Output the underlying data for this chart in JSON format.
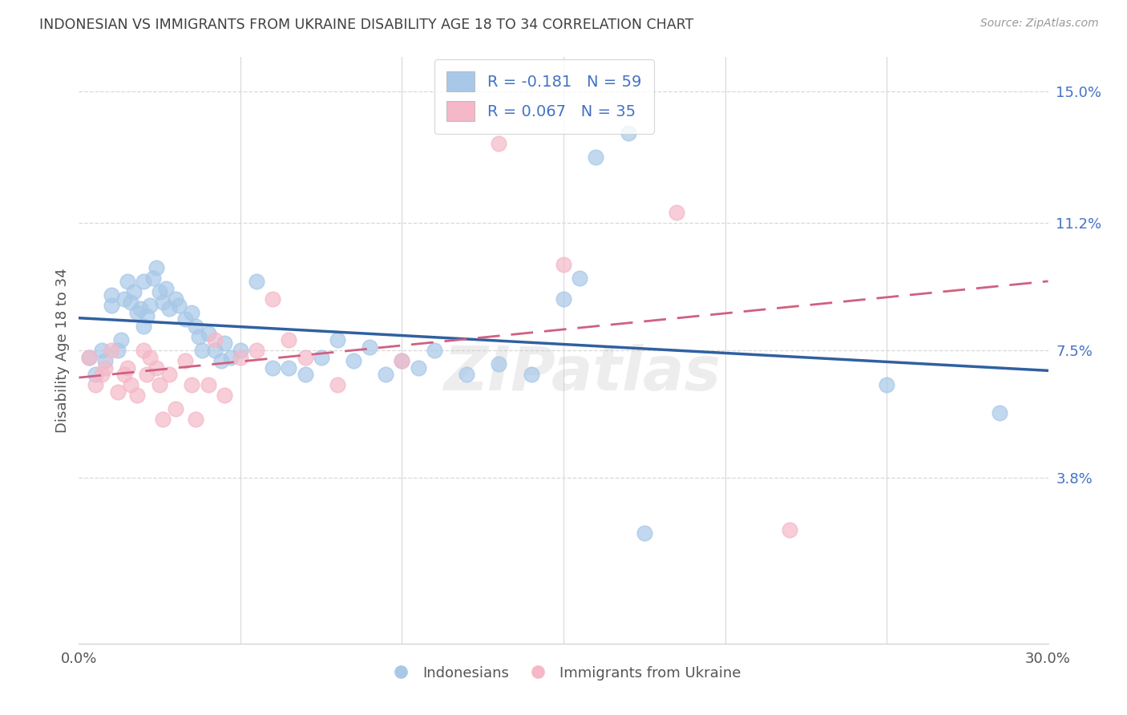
{
  "title": "INDONESIAN VS IMMIGRANTS FROM UKRAINE DISABILITY AGE 18 TO 34 CORRELATION CHART",
  "source": "Source: ZipAtlas.com",
  "ylabel": "Disability Age 18 to 34",
  "xlim": [
    0.0,
    0.3
  ],
  "ylim": [
    -0.01,
    0.16
  ],
  "xticks": [
    0.0,
    0.05,
    0.1,
    0.15,
    0.2,
    0.25,
    0.3
  ],
  "ytick_positions": [
    0.038,
    0.075,
    0.112,
    0.15
  ],
  "ytick_labels": [
    "3.8%",
    "7.5%",
    "11.2%",
    "15.0%"
  ],
  "legend_labels": [
    "R = -0.181   N = 59",
    "R = 0.067   N = 35"
  ],
  "bottom_legend": [
    "Indonesians",
    "Immigrants from Ukraine"
  ],
  "blue_color": "#a8c8e8",
  "pink_color": "#f4b8c8",
  "line_blue": "#3060a0",
  "line_pink": "#d06080",
  "indonesian_x": [
    0.003,
    0.005,
    0.007,
    0.008,
    0.01,
    0.01,
    0.012,
    0.013,
    0.014,
    0.015,
    0.016,
    0.017,
    0.018,
    0.019,
    0.02,
    0.02,
    0.021,
    0.022,
    0.023,
    0.024,
    0.025,
    0.026,
    0.027,
    0.028,
    0.03,
    0.031,
    0.033,
    0.035,
    0.036,
    0.037,
    0.038,
    0.04,
    0.042,
    0.044,
    0.045,
    0.047,
    0.05,
    0.055,
    0.06,
    0.065,
    0.07,
    0.075,
    0.08,
    0.085,
    0.09,
    0.095,
    0.1,
    0.105,
    0.11,
    0.12,
    0.13,
    0.14,
    0.15,
    0.155,
    0.16,
    0.17,
    0.175,
    0.25,
    0.285
  ],
  "indonesian_y": [
    0.073,
    0.068,
    0.075,
    0.072,
    0.091,
    0.088,
    0.075,
    0.078,
    0.09,
    0.095,
    0.089,
    0.092,
    0.086,
    0.087,
    0.095,
    0.082,
    0.085,
    0.088,
    0.096,
    0.099,
    0.092,
    0.089,
    0.093,
    0.087,
    0.09,
    0.088,
    0.084,
    0.086,
    0.082,
    0.079,
    0.075,
    0.08,
    0.075,
    0.072,
    0.077,
    0.073,
    0.075,
    0.095,
    0.07,
    0.07,
    0.068,
    0.073,
    0.078,
    0.072,
    0.076,
    0.068,
    0.072,
    0.07,
    0.075,
    0.068,
    0.071,
    0.068,
    0.09,
    0.096,
    0.131,
    0.138,
    0.022,
    0.065,
    0.057
  ],
  "ukraine_x": [
    0.003,
    0.005,
    0.007,
    0.008,
    0.01,
    0.012,
    0.014,
    0.015,
    0.016,
    0.018,
    0.02,
    0.021,
    0.022,
    0.024,
    0.025,
    0.026,
    0.028,
    0.03,
    0.033,
    0.035,
    0.036,
    0.04,
    0.042,
    0.045,
    0.05,
    0.055,
    0.06,
    0.065,
    0.07,
    0.08,
    0.1,
    0.13,
    0.15,
    0.185,
    0.22
  ],
  "ukraine_y": [
    0.073,
    0.065,
    0.068,
    0.07,
    0.075,
    0.063,
    0.068,
    0.07,
    0.065,
    0.062,
    0.075,
    0.068,
    0.073,
    0.07,
    0.065,
    0.055,
    0.068,
    0.058,
    0.072,
    0.065,
    0.055,
    0.065,
    0.078,
    0.062,
    0.073,
    0.075,
    0.09,
    0.078,
    0.073,
    0.065,
    0.072,
    0.135,
    0.1,
    0.115,
    0.023
  ],
  "watermark": "ZIPatlas",
  "background_color": "#ffffff",
  "grid_color": "#d8d8d8",
  "text_color": "#4472c4",
  "title_color": "#404040"
}
